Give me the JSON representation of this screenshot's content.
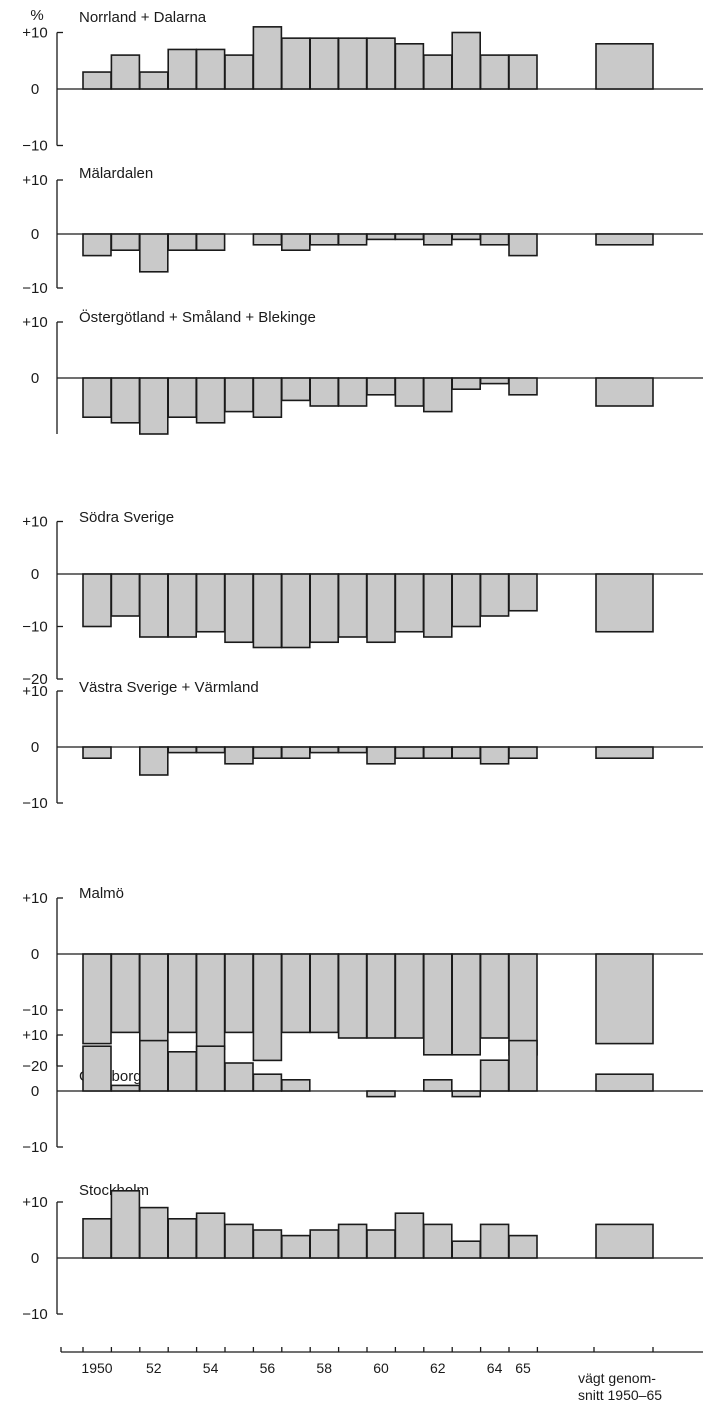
{
  "chart_data": {
    "type": "bar",
    "unit_label": "%",
    "categories": [
      "1950",
      "1951",
      "1952",
      "1953",
      "1954",
      "1955",
      "1956",
      "1957",
      "1958",
      "1959",
      "1960",
      "1961",
      "1962",
      "1963",
      "1964",
      "1965"
    ],
    "x_tick_labels": [
      {
        "category": "1950",
        "label": "1950"
      },
      {
        "category": "1952",
        "label": "52"
      },
      {
        "category": "1954",
        "label": "54"
      },
      {
        "category": "1956",
        "label": "56"
      },
      {
        "category": "1958",
        "label": "58"
      },
      {
        "category": "1960",
        "label": "60"
      },
      {
        "category": "1962",
        "label": "62"
      },
      {
        "category": "1964",
        "label": "64"
      },
      {
        "category": "1965",
        "label": "65"
      }
    ],
    "average_label_line1": "vägt genom-",
    "average_label_line2": "snitt 1950–65",
    "panels": [
      {
        "title": "Norrland + Dalarna",
        "ylim": [
          -10,
          10
        ],
        "yticks": [
          {
            "v": 10,
            "label": "+10"
          },
          {
            "v": 0,
            "label": "0"
          },
          {
            "v": -10,
            "label": "−10"
          }
        ],
        "values": [
          3,
          6,
          3,
          7,
          7,
          6,
          11,
          9,
          9,
          9,
          9,
          8,
          6,
          10,
          6,
          6
        ],
        "average": 8
      },
      {
        "title": "Mälardalen",
        "ylim": [
          -10,
          10
        ],
        "yticks": [
          {
            "v": 10,
            "label": "+10"
          },
          {
            "v": 0,
            "label": "0"
          },
          {
            "v": -10,
            "label": "−10"
          }
        ],
        "values": [
          -4,
          -3,
          -7,
          -3,
          -3,
          0,
          -2,
          -3,
          -2,
          -2,
          -1,
          -1,
          -2,
          -1,
          -2,
          -4
        ],
        "average": -2
      },
      {
        "title": "Östergötland + Småland + Blekinge",
        "ylim": [
          -10,
          10
        ],
        "yticks": [
          {
            "v": 10,
            "label": "+10"
          },
          {
            "v": 0,
            "label": "0"
          }
        ],
        "values": [
          -7,
          -8,
          -10,
          -7,
          -8,
          -6,
          -7,
          -4,
          -5,
          -5,
          -3,
          -5,
          -6,
          -2,
          -1,
          -3
        ],
        "average": -5
      },
      {
        "title": "Södra Sverige",
        "ylim": [
          -20,
          10
        ],
        "yticks": [
          {
            "v": 10,
            "label": "+10"
          },
          {
            "v": 0,
            "label": "0"
          },
          {
            "v": -10,
            "label": "−10"
          },
          {
            "v": -20,
            "label": "−20"
          }
        ],
        "values": [
          -10,
          -8,
          -12,
          -12,
          -11,
          -13,
          -14,
          -14,
          -13,
          -12,
          -13,
          -11,
          -12,
          -10,
          -8,
          -7
        ],
        "average": -11
      },
      {
        "title": "Västra Sverige + Värmland",
        "ylim": [
          -10,
          10
        ],
        "yticks": [
          {
            "v": 10,
            "label": "+10"
          },
          {
            "v": 0,
            "label": "0"
          },
          {
            "v": -10,
            "label": "−10"
          }
        ],
        "values": [
          -2,
          0,
          -5,
          -1,
          -1,
          -3,
          -2,
          -2,
          -1,
          -1,
          -3,
          -2,
          -2,
          -2,
          -3,
          -2
        ],
        "average": -2
      },
      {
        "title": "Malmö",
        "ylim": [
          -20,
          10
        ],
        "yticks": [
          {
            "v": 10,
            "label": "+10"
          },
          {
            "v": 0,
            "label": "0"
          },
          {
            "v": -10,
            "label": "−10"
          },
          {
            "v": -20,
            "label": "−20"
          }
        ],
        "values": [
          -16,
          -14,
          -17,
          -14,
          -17,
          -14,
          -19,
          -14,
          -14,
          -15,
          -15,
          -15,
          -18,
          -18,
          -15,
          -18
        ],
        "average": -16
      },
      {
        "title": "Göteborg",
        "ylim": [
          -10,
          10
        ],
        "yticks": [
          {
            "v": 10,
            "label": "+10"
          },
          {
            "v": 0,
            "label": "0"
          },
          {
            "v": -10,
            "label": "−10"
          }
        ],
        "values": [
          8,
          1,
          9,
          7,
          8,
          5,
          3,
          2,
          0,
          0,
          -1,
          0,
          2,
          -1,
          5.5,
          9
        ],
        "average": 3
      },
      {
        "title": "Stockholm",
        "ylim": [
          -10,
          10
        ],
        "yticks": [
          {
            "v": 10,
            "label": "+10"
          },
          {
            "v": 0,
            "label": "0"
          },
          {
            "v": -10,
            "label": "−10"
          }
        ],
        "values": [
          7,
          12,
          9,
          7,
          8,
          6,
          5,
          4,
          5,
          6,
          5,
          8,
          6,
          3,
          6,
          4
        ],
        "average": 6
      }
    ]
  }
}
